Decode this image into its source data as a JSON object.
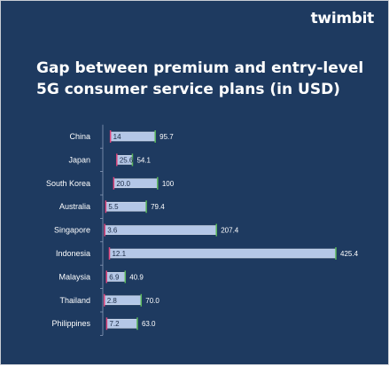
{
  "brand": "twimbit",
  "chart_data": {
    "type": "bar",
    "title": "Gap between premium and entry-level 5G consumer service plans (in USD)",
    "categories": [
      "China",
      "Japan",
      "South Korea",
      "Australia",
      "Singapore",
      "Indonesia",
      "Malaysia",
      "Thailand",
      "Philippines"
    ],
    "series": [
      {
        "values": [
          14,
          25.6,
          20.0,
          5.5,
          3.6,
          12.1,
          6.9,
          2.8,
          7.2
        ]
      },
      {
        "values": [
          95.7,
          54.1,
          100,
          79.4,
          207.4,
          425.4,
          40.9,
          70.0,
          63.0
        ]
      }
    ],
    "low_labels": [
      "14",
      "25.6",
      "20.0",
      "5.5",
      "3.6",
      "12.1",
      "6.9",
      "2.8",
      "7.2"
    ],
    "high_labels": [
      "95.7",
      "54.1",
      "100",
      "79.4",
      "207.4",
      "425.4",
      "40.9",
      "70.0",
      "63.0"
    ],
    "xlim": [
      0,
      425.4
    ],
    "colors": {
      "background": "#1e3a60",
      "bar": "#b4c7e7",
      "low_marker": "#e0457b",
      "high_marker": "#5cb85c",
      "text": "#ffffff"
    },
    "grid": false,
    "legend": "none"
  }
}
